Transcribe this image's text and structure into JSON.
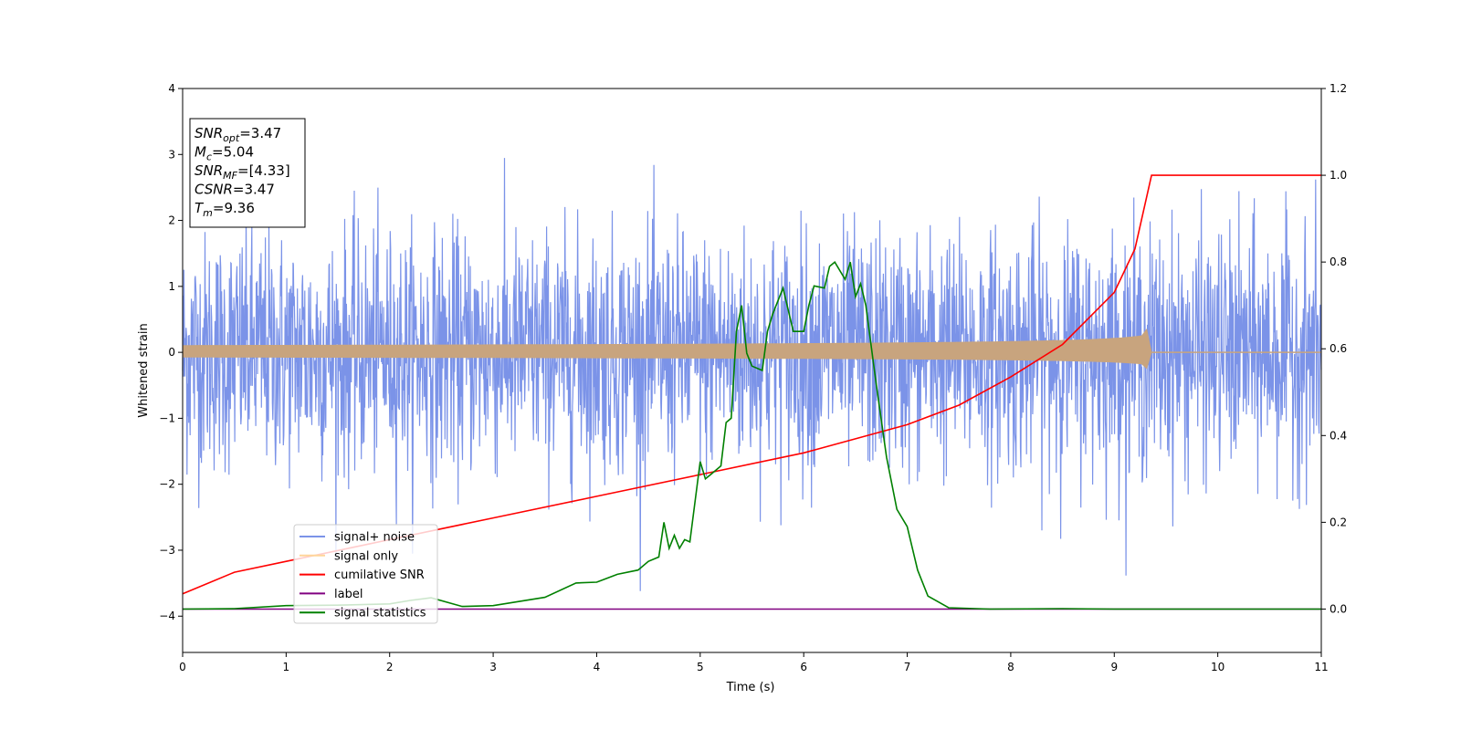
{
  "chart_data": {
    "type": "line",
    "xlabel": "Time (s)",
    "ylabel": "Whitened strain",
    "xlim": [
      0,
      11
    ],
    "ylim_left": [
      -4.55,
      4.0
    ],
    "ylim_right": [
      -0.1,
      1.2
    ],
    "x_ticks": [
      "0",
      "1",
      "2",
      "3",
      "4",
      "5",
      "6",
      "7",
      "8",
      "9",
      "10",
      "11"
    ],
    "y_ticks_left": [
      "−4",
      "−3",
      "−2",
      "−1",
      "0",
      "1",
      "2",
      "3",
      "4"
    ],
    "y_ticks_right": [
      "0.0",
      "0.2",
      "0.4",
      "0.6",
      "0.8",
      "1.0",
      "1.2"
    ],
    "grid": false,
    "legend_position": "lower-left",
    "legend": [
      {
        "label": "signal+ noise",
        "color": "#7b93e8"
      },
      {
        "label": "signal only",
        "color": "#ffd59a"
      },
      {
        "label": "cumilative SNR",
        "color": "#ff0000"
      },
      {
        "label": "label",
        "color": "#800080"
      },
      {
        "label": "signal statistics",
        "color": "#008000"
      }
    ],
    "annotation": [
      {
        "base": "SNR",
        "sub": "opt",
        "value": "=3.47"
      },
      {
        "base": "M",
        "sub": "c",
        "value": "=5.04"
      },
      {
        "base": "SNR",
        "sub": "MF",
        "value": "=[4.33]"
      },
      {
        "base": "CSNR",
        "sub": "",
        "value": "=3.47"
      },
      {
        "base": "T",
        "sub": "m",
        "value": "=9.36"
      }
    ],
    "series": [
      {
        "name": "signal+ noise",
        "axis": "left",
        "color": "#7b93e8",
        "description_values": {
          "mean": 0.0,
          "std": 0.9,
          "min": -4.15,
          "max": 3.6
        }
      },
      {
        "name": "signal only",
        "axis": "left",
        "color": "#c8a47e",
        "chirp_end_time": 9.36,
        "peak_amplitude": 0.35
      },
      {
        "name": "cumilative SNR",
        "axis": "right",
        "color": "#ff0000",
        "x": [
          0,
          0.5,
          1,
          2,
          3,
          4,
          5,
          6,
          7,
          7.5,
          8,
          8.5,
          9,
          9.2,
          9.36,
          11
        ],
        "y": [
          0.035,
          0.085,
          0.11,
          0.16,
          0.21,
          0.26,
          0.31,
          0.36,
          0.425,
          0.47,
          0.535,
          0.61,
          0.73,
          0.83,
          1.0,
          1.0
        ]
      },
      {
        "name": "label",
        "axis": "right",
        "color": "#800080",
        "x": [
          0,
          11
        ],
        "y": [
          0,
          0
        ]
      },
      {
        "name": "signal statistics",
        "axis": "right",
        "color": "#008000",
        "x": [
          0,
          0.5,
          1,
          1.5,
          2,
          2.2,
          2.4,
          2.7,
          3,
          3.5,
          3.8,
          4.0,
          4.2,
          4.4,
          4.5,
          4.6,
          4.65,
          4.7,
          4.75,
          4.8,
          4.85,
          4.9,
          5.0,
          5.05,
          5.1,
          5.2,
          5.25,
          5.3,
          5.35,
          5.4,
          5.45,
          5.5,
          5.6,
          5.65,
          5.7,
          5.8,
          5.9,
          6.0,
          6.05,
          6.1,
          6.2,
          6.25,
          6.3,
          6.4,
          6.45,
          6.5,
          6.55,
          6.6,
          6.7,
          6.8,
          6.9,
          7.0,
          7.1,
          7.2,
          7.4,
          7.8,
          8.5,
          9,
          11
        ],
        "y": [
          0.0,
          0.001,
          0.008,
          0.009,
          0.012,
          0.02,
          0.026,
          0.006,
          0.008,
          0.027,
          0.06,
          0.062,
          0.08,
          0.09,
          0.11,
          0.12,
          0.2,
          0.14,
          0.17,
          0.14,
          0.16,
          0.155,
          0.34,
          0.3,
          0.31,
          0.33,
          0.43,
          0.44,
          0.64,
          0.7,
          0.59,
          0.56,
          0.55,
          0.64,
          0.68,
          0.74,
          0.64,
          0.64,
          0.7,
          0.745,
          0.74,
          0.79,
          0.8,
          0.76,
          0.8,
          0.72,
          0.75,
          0.7,
          0.52,
          0.35,
          0.23,
          0.19,
          0.09,
          0.03,
          0.003,
          0.0,
          0.001,
          0.0,
          0.0
        ]
      }
    ]
  }
}
